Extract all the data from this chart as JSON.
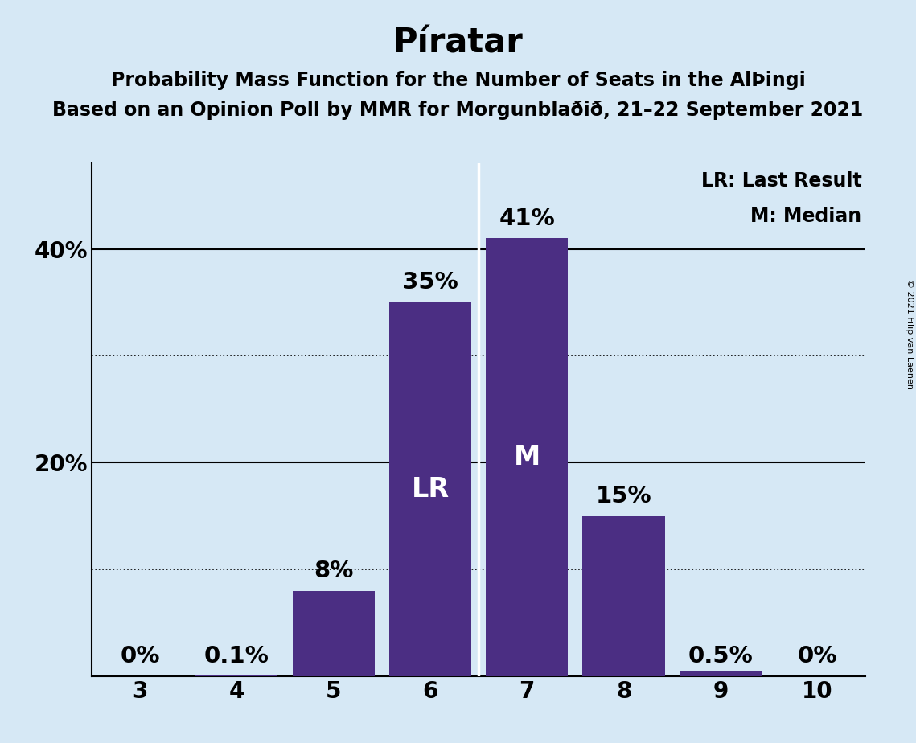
{
  "title": "Píratar",
  "subtitle1": "Probability Mass Function for the Number of Seats in the AlÞingi",
  "subtitle2": "Based on an Opinion Poll by MMR for Morgunblaðið, 21–22 September 2021",
  "copyright": "© 2021 Filip van Laenen",
  "categories": [
    3,
    4,
    5,
    6,
    7,
    8,
    9,
    10
  ],
  "values": [
    0.0,
    0.1,
    8.0,
    35.0,
    41.0,
    15.0,
    0.5,
    0.0
  ],
  "bar_color": "#4b2e83",
  "background_color": "#d6e8f5",
  "label_texts": [
    "0%",
    "0.1%",
    "8%",
    "35%",
    "41%",
    "15%",
    "0.5%",
    "0%"
  ],
  "lr_seat": 6,
  "median_seat": 7,
  "lr_label": "LR",
  "median_label": "M",
  "legend_lr": "LR: Last Result",
  "legend_m": "M: Median",
  "ytick_positions": [
    20,
    40
  ],
  "ytick_labels": [
    "20%",
    "40%"
  ],
  "solid_gridlines": [
    20,
    40
  ],
  "dotted_gridlines": [
    10,
    30
  ],
  "ylim": [
    0,
    48
  ],
  "title_fontsize": 30,
  "subtitle_fontsize": 17,
  "axis_tick_fontsize": 20,
  "bar_label_fontsize": 21,
  "legend_fontsize": 17,
  "inner_label_fontsize": 24,
  "figsize": [
    11.39,
    9.24
  ],
  "dpi": 100
}
